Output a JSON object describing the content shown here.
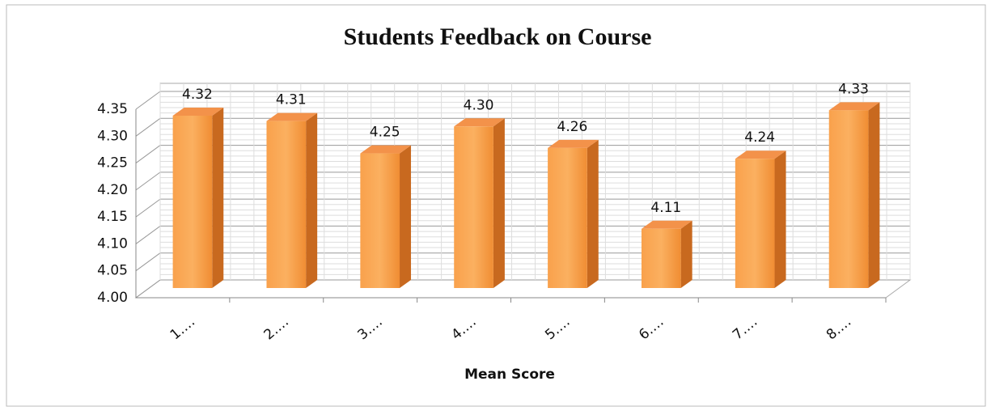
{
  "chart_data": {
    "type": "bar",
    "title": "Students Feedback on Course",
    "x_label": "Mean Score",
    "categories": [
      "1.…",
      "2.…",
      "3.…",
      "4.…",
      "5.…",
      "6.…",
      "7.…",
      "8.…"
    ],
    "values": [
      4.32,
      4.31,
      4.25,
      4.3,
      4.26,
      4.11,
      4.24,
      4.33
    ],
    "value_labels": [
      "4.32",
      "4.31",
      "4.25",
      "4.30",
      "4.26",
      "4.11",
      "4.24",
      "4.33"
    ],
    "color": "#f79a3e",
    "ylim": [
      4,
      4.35
    ],
    "yticks": [
      {
        "value": 4,
        "label": "4.00"
      },
      4.05,
      {
        "value": 4.1,
        "label": "4.10"
      },
      4.15,
      {
        "value": 4.2,
        "label": "4.20"
      },
      4.25,
      {
        "value": 4.3,
        "label": "4.30"
      },
      4.35
    ],
    "grid": true
  }
}
